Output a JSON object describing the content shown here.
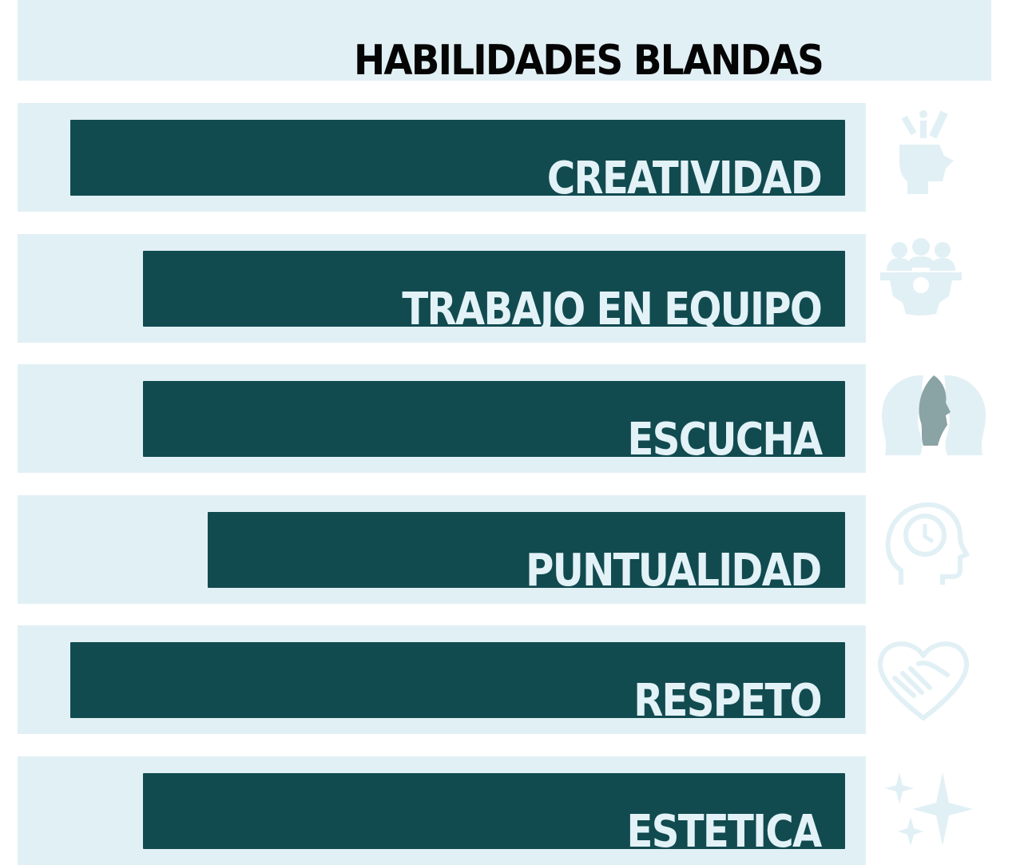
{
  "chart_data": {
    "type": "bar",
    "orientation": "horizontal",
    "title": "HABILIDADES BLANDAS",
    "categories": [
      "CREATIVIDAD",
      "TRABAJO EN EQUIPO",
      "ESCUCHA",
      "PUNTUALIDAD",
      "RESPETO",
      "ESTETICA"
    ],
    "values": [
      96,
      87,
      87,
      79,
      96,
      87
    ],
    "xlim": [
      0,
      100
    ],
    "grid": false,
    "legend": "none",
    "icons": [
      "creativity-head-icon",
      "teamwork-gear-icon",
      "listening-faces-icon",
      "punctuality-clock-head-icon",
      "respect-handshake-heart-icon",
      "sparkles-icon"
    ],
    "colors": {
      "bar": "#114b50",
      "row_background": "#e1f0f5",
      "label": "#e3f2f7",
      "icon": "#e1f0f5",
      "icon_accent": "#8aa3a5",
      "title": "#050505"
    }
  }
}
